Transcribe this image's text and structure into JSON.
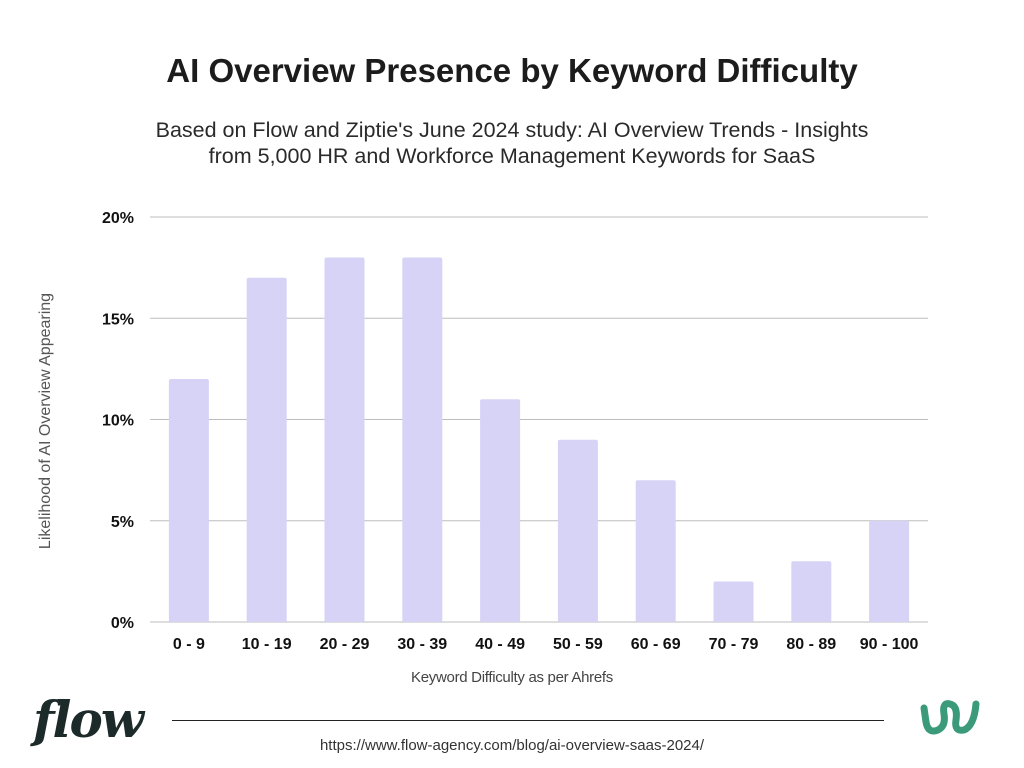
{
  "chart_data": {
    "type": "bar",
    "title": "AI Overview Presence by Keyword Difficulty",
    "subtitle_lines": [
      "Based on Flow and Ziptie's June 2024 study: AI Overview Trends - Insights",
      "from 5,000 HR and Workforce Management Keywords for SaaS"
    ],
    "xlabel": "Keyword Difficulty as per Ahrefs",
    "ylabel": "Likelihood of AI Overview Appearing",
    "categories": [
      "0 - 9",
      "10 - 19",
      "20 - 29",
      "30 - 39",
      "40 - 49",
      "50 - 59",
      "60 - 69",
      "70 - 79",
      "80 - 89",
      "90 - 100"
    ],
    "values": [
      12,
      17,
      18,
      18,
      11,
      9,
      7,
      2,
      3,
      5
    ],
    "ylim": [
      0,
      20
    ],
    "yticks": [
      0,
      5,
      10,
      15,
      20
    ],
    "ytick_labels": [
      "0%",
      "5%",
      "10%",
      "15%",
      "20%"
    ],
    "grid": true,
    "legend": "none",
    "bar_color": "#d6d3f7",
    "grid_color": "#bdbdbd"
  },
  "branding": {
    "logo_text": "flow",
    "mark_icon": "ziptie-logo-icon",
    "mark_color": "#3a9a7a"
  },
  "footer": {
    "url": "https://www.flow-agency.com/blog/ai-overview-saas-2024/"
  }
}
